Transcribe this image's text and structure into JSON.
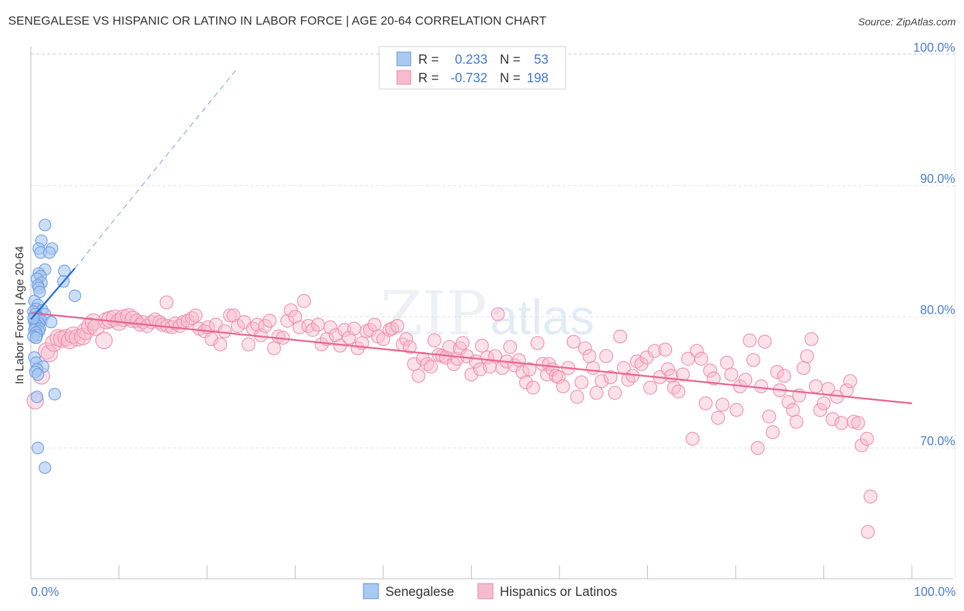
{
  "header": {
    "title": "SENEGALESE VS HISPANIC OR LATINO IN LABOR FORCE | AGE 20-64 CORRELATION CHART",
    "source": "Source: ZipAtlas.com"
  },
  "watermark": {
    "zip": "ZIP",
    "atlas": "atlas"
  },
  "legend": {
    "rows": [
      {
        "r_label": "R =",
        "r_value": "0.233",
        "n_label": "N =",
        "n_value": "53"
      },
      {
        "r_label": "R =",
        "r_value": "-0.732",
        "n_label": "N =",
        "n_value": "198"
      }
    ]
  },
  "bottom_legend": {
    "senegalese": "Senegalese",
    "hispanic": "Hispanics or Latinos"
  },
  "colors": {
    "blue_fill": "#a9c8f2",
    "blue_stroke": "#6f9ee0",
    "blue_line": "#2a6fd4",
    "pink_fill": "#f6bccd",
    "pink_stroke": "#ef8fae",
    "pink_line": "#e8678f",
    "accent_text": "#4a7fd0"
  },
  "chart_data": {
    "type": "scatter",
    "title": "SENEGALESE VS HISPANIC OR LATINO IN LABOR FORCE | AGE 20-64 CORRELATION CHART",
    "xlabel": "",
    "ylabel": "In Labor Force | Age 20-64",
    "xlim": [
      0,
      100
    ],
    "ylim": [
      61,
      104
    ],
    "x_tick_labels": [
      "0.0%",
      "100.0%"
    ],
    "y_ticks": [
      70,
      80,
      90,
      100
    ],
    "y_tick_labels": [
      "70.0%",
      "80.0%",
      "90.0%",
      "100.0%"
    ],
    "grid": true,
    "legend_position": "top-center",
    "series": [
      {
        "name": "Senegalese",
        "r": 0.233,
        "n": 53,
        "trend": {
          "x": [
            0.0,
            5.0
          ],
          "y": [
            79.8,
            83.7
          ]
        },
        "trend_extension": {
          "x": [
            5.0,
            23.5
          ],
          "y": [
            83.7,
            99.0
          ]
        },
        "points": [
          [
            1.6,
            87.0
          ],
          [
            1.2,
            85.8
          ],
          [
            0.9,
            85.2
          ],
          [
            2.4,
            85.2
          ],
          [
            1.1,
            84.9
          ],
          [
            2.1,
            84.9
          ],
          [
            1.6,
            83.6
          ],
          [
            3.8,
            83.5
          ],
          [
            0.9,
            83.3
          ],
          [
            1.1,
            83.1
          ],
          [
            0.7,
            82.9
          ],
          [
            3.7,
            82.7
          ],
          [
            1.2,
            82.6
          ],
          [
            0.8,
            82.4
          ],
          [
            0.9,
            82.2
          ],
          [
            1.0,
            81.9
          ],
          [
            5.0,
            81.6
          ],
          [
            0.4,
            81.2
          ],
          [
            0.8,
            80.9
          ],
          [
            0.6,
            80.6
          ],
          [
            1.3,
            80.5
          ],
          [
            0.3,
            80.4
          ],
          [
            0.5,
            80.2
          ],
          [
            1.6,
            80.2
          ],
          [
            0.8,
            80.0
          ],
          [
            0.5,
            79.9
          ],
          [
            0.9,
            79.9
          ],
          [
            0.7,
            79.8
          ],
          [
            1.2,
            79.7
          ],
          [
            0.4,
            79.6
          ],
          [
            0.9,
            79.5
          ],
          [
            0.6,
            79.4
          ],
          [
            2.3,
            79.6
          ],
          [
            0.7,
            79.3
          ],
          [
            0.5,
            79.2
          ],
          [
            1.0,
            79.1
          ],
          [
            0.4,
            79.0
          ],
          [
            0.9,
            78.9
          ],
          [
            0.6,
            78.8
          ],
          [
            0.7,
            78.6
          ],
          [
            0.3,
            78.5
          ],
          [
            0.6,
            78.4
          ],
          [
            0.4,
            76.9
          ],
          [
            0.6,
            76.5
          ],
          [
            1.4,
            76.2
          ],
          [
            0.7,
            76.0
          ],
          [
            0.5,
            75.8
          ],
          [
            0.8,
            75.6
          ],
          [
            0.7,
            73.9
          ],
          [
            2.7,
            74.1
          ],
          [
            0.8,
            70.0
          ],
          [
            1.6,
            68.5
          ],
          [
            0.3,
            79.9
          ]
        ]
      },
      {
        "name": "Hispanics or Latinos",
        "r": -0.732,
        "n": 198,
        "trend": {
          "x": [
            0.0,
            100.0
          ],
          "y": [
            80.3,
            73.4
          ]
        },
        "points": [
          [
            0.5,
            73.6
          ],
          [
            1.2,
            75.5
          ],
          [
            1.8,
            77.4
          ],
          [
            2.1,
            77.2
          ],
          [
            2.6,
            78.0
          ],
          [
            3.1,
            78.4
          ],
          [
            3.5,
            78.3
          ],
          [
            4.0,
            78.4
          ],
          [
            4.4,
            78.2
          ],
          [
            4.8,
            78.6
          ],
          [
            5.3,
            78.4
          ],
          [
            5.9,
            78.5
          ],
          [
            6.2,
            78.9
          ],
          [
            6.7,
            79.3
          ],
          [
            7.1,
            79.6
          ],
          [
            7.4,
            79.2
          ],
          [
            8.3,
            78.2
          ],
          [
            8.6,
            79.7
          ],
          [
            9.0,
            79.8
          ],
          [
            9.5,
            79.9
          ],
          [
            10.0,
            79.6
          ],
          [
            10.5,
            79.9
          ],
          [
            11.1,
            80.0
          ],
          [
            11.6,
            79.8
          ],
          [
            12.0,
            79.7
          ],
          [
            12.4,
            79.4
          ],
          [
            12.7,
            79.6
          ],
          [
            13.2,
            79.3
          ],
          [
            13.7,
            79.6
          ],
          [
            14.1,
            79.8
          ],
          [
            14.6,
            79.6
          ],
          [
            14.9,
            79.4
          ],
          [
            15.5,
            79.3
          ],
          [
            15.4,
            81.1
          ],
          [
            16.0,
            79.2
          ],
          [
            16.4,
            79.5
          ],
          [
            16.9,
            79.3
          ],
          [
            17.3,
            79.6
          ],
          [
            17.8,
            79.7
          ],
          [
            18.3,
            79.9
          ],
          [
            18.7,
            80.1
          ],
          [
            19.1,
            79.1
          ],
          [
            19.7,
            78.9
          ],
          [
            20.1,
            79.2
          ],
          [
            20.5,
            78.3
          ],
          [
            21.0,
            79.4
          ],
          [
            21.5,
            77.9
          ],
          [
            22.0,
            78.9
          ],
          [
            22.6,
            80.1
          ],
          [
            23.0,
            80.1
          ],
          [
            23.5,
            79.3
          ],
          [
            24.2,
            79.6
          ],
          [
            24.7,
            77.9
          ],
          [
            25.2,
            79.1
          ],
          [
            25.7,
            79.4
          ],
          [
            26.1,
            78.6
          ],
          [
            26.6,
            79.3
          ],
          [
            27.1,
            79.7
          ],
          [
            27.6,
            77.6
          ],
          [
            28.1,
            78.5
          ],
          [
            28.6,
            78.4
          ],
          [
            29.1,
            79.7
          ],
          [
            29.5,
            80.5
          ],
          [
            30.0,
            80.0
          ],
          [
            30.5,
            79.2
          ],
          [
            31.0,
            81.2
          ],
          [
            31.5,
            79.3
          ],
          [
            32.0,
            79.0
          ],
          [
            32.6,
            79.4
          ],
          [
            33.0,
            77.9
          ],
          [
            33.6,
            78.3
          ],
          [
            34.0,
            79.2
          ],
          [
            34.6,
            78.6
          ],
          [
            35.1,
            77.8
          ],
          [
            35.6,
            79.0
          ],
          [
            36.1,
            78.4
          ],
          [
            36.7,
            79.1
          ],
          [
            37.1,
            77.6
          ],
          [
            37.6,
            78.0
          ],
          [
            38.1,
            78.9
          ],
          [
            38.5,
            79.0
          ],
          [
            39.0,
            79.4
          ],
          [
            39.4,
            78.5
          ],
          [
            40.0,
            78.3
          ],
          [
            40.7,
            79.0
          ],
          [
            41.0,
            79.1
          ],
          [
            41.6,
            79.3
          ],
          [
            42.2,
            77.9
          ],
          [
            42.6,
            78.3
          ],
          [
            43.0,
            77.7
          ],
          [
            43.5,
            76.4
          ],
          [
            44.0,
            75.5
          ],
          [
            44.5,
            76.8
          ],
          [
            45.0,
            76.4
          ],
          [
            45.4,
            76.2
          ],
          [
            45.8,
            78.2
          ],
          [
            46.3,
            77.1
          ],
          [
            46.7,
            77.0
          ],
          [
            47.1,
            76.9
          ],
          [
            47.5,
            77.7
          ],
          [
            48.0,
            76.4
          ],
          [
            48.4,
            76.8
          ],
          [
            48.7,
            77.6
          ],
          [
            49.0,
            78.0
          ],
          [
            49.5,
            77.0
          ],
          [
            50.0,
            75.6
          ],
          [
            50.5,
            76.6
          ],
          [
            51.0,
            76.0
          ],
          [
            51.2,
            77.8
          ],
          [
            51.8,
            76.9
          ],
          [
            52.1,
            76.2
          ],
          [
            52.7,
            77.0
          ],
          [
            53.0,
            80.2
          ],
          [
            53.5,
            76.1
          ],
          [
            54.0,
            76.6
          ],
          [
            54.4,
            77.7
          ],
          [
            54.9,
            76.3
          ],
          [
            55.4,
            76.7
          ],
          [
            55.8,
            75.8
          ],
          [
            56.2,
            75.0
          ],
          [
            56.6,
            76.0
          ],
          [
            57.0,
            74.6
          ],
          [
            57.5,
            78.0
          ],
          [
            58.1,
            76.4
          ],
          [
            58.6,
            75.6
          ],
          [
            58.8,
            76.4
          ],
          [
            59.2,
            76.0
          ],
          [
            59.6,
            75.5
          ],
          [
            59.9,
            75.4
          ],
          [
            60.4,
            74.7
          ],
          [
            61.0,
            76.1
          ],
          [
            61.6,
            78.1
          ],
          [
            62.0,
            73.9
          ],
          [
            62.5,
            75.0
          ],
          [
            62.9,
            77.6
          ],
          [
            63.4,
            77.0
          ],
          [
            63.8,
            76.1
          ],
          [
            64.2,
            74.2
          ],
          [
            64.8,
            75.1
          ],
          [
            65.3,
            77.0
          ],
          [
            65.8,
            75.4
          ],
          [
            66.3,
            74.2
          ],
          [
            66.9,
            78.5
          ],
          [
            67.3,
            76.1
          ],
          [
            67.8,
            75.2
          ],
          [
            68.3,
            75.5
          ],
          [
            68.8,
            76.6
          ],
          [
            69.3,
            76.4
          ],
          [
            69.9,
            76.9
          ],
          [
            70.3,
            74.6
          ],
          [
            70.8,
            77.4
          ],
          [
            71.4,
            75.4
          ],
          [
            72.0,
            77.5
          ],
          [
            72.3,
            76.0
          ],
          [
            72.7,
            75.5
          ],
          [
            73.0,
            74.6
          ],
          [
            73.5,
            74.3
          ],
          [
            74.0,
            75.6
          ],
          [
            74.6,
            76.8
          ],
          [
            75.1,
            70.7
          ],
          [
            75.6,
            77.4
          ],
          [
            76.1,
            76.8
          ],
          [
            76.6,
            73.4
          ],
          [
            77.1,
            75.9
          ],
          [
            77.5,
            75.3
          ],
          [
            78.0,
            72.3
          ],
          [
            78.5,
            73.3
          ],
          [
            79.0,
            76.5
          ],
          [
            79.5,
            75.6
          ],
          [
            80.1,
            72.9
          ],
          [
            80.5,
            74.7
          ],
          [
            81.1,
            75.2
          ],
          [
            81.6,
            78.2
          ],
          [
            82.0,
            76.7
          ],
          [
            82.5,
            70.0
          ],
          [
            82.9,
            74.7
          ],
          [
            83.3,
            78.1
          ],
          [
            83.8,
            72.4
          ],
          [
            84.2,
            71.2
          ],
          [
            84.7,
            75.8
          ],
          [
            85.0,
            74.4
          ],
          [
            85.5,
            75.5
          ],
          [
            86.0,
            73.5
          ],
          [
            86.5,
            72.9
          ],
          [
            86.9,
            72.0
          ],
          [
            87.2,
            74.0
          ],
          [
            87.7,
            76.1
          ],
          [
            88.1,
            77.0
          ],
          [
            88.6,
            78.3
          ],
          [
            89.1,
            74.7
          ],
          [
            89.6,
            72.9
          ],
          [
            90.0,
            73.4
          ],
          [
            90.5,
            74.5
          ],
          [
            91.0,
            72.2
          ],
          [
            91.5,
            73.9
          ],
          [
            92.0,
            71.9
          ],
          [
            92.6,
            74.4
          ],
          [
            93.0,
            75.1
          ],
          [
            93.4,
            72.0
          ],
          [
            93.9,
            71.9
          ],
          [
            94.3,
            70.2
          ],
          [
            94.9,
            70.7
          ],
          [
            95.3,
            66.3
          ],
          [
            95.0,
            63.6
          ]
        ]
      }
    ]
  }
}
